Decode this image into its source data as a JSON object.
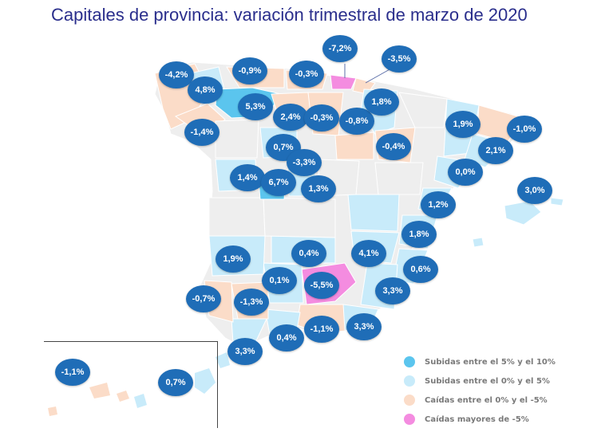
{
  "title": "Capitales de provincia: variación trimestral de marzo de 2020",
  "colors": {
    "badge": "#1f6db7",
    "rise_5_10": "#5bc5ee",
    "rise_0_5": "#c8ebfa",
    "fall_0_5": "#fbdcc8",
    "fall_gt5": "#f48ce0",
    "no_data": "#eeeeee"
  },
  "legend": [
    {
      "label": "Subidas entre el 5% y el 10%",
      "color": "#5bc5ee"
    },
    {
      "label": "Subidas entre el 0% y el 5%",
      "color": "#c8ebfa"
    },
    {
      "label": "Caídas entre el 0% y el -5%",
      "color": "#fbdcc8"
    },
    {
      "label": "Caídas mayores de -5%",
      "color": "#f48ce0"
    }
  ],
  "badges": [
    "-4,2%",
    "4,8%",
    "-0,9%",
    "-0,3%",
    "-7,2%",
    "-3,5%",
    "5,3%",
    "2,4%",
    "-0,3%",
    "-0,8%",
    "1,8%",
    "1,9%",
    "-1,0%",
    "-1,4%",
    "0,7%",
    "-0,4%",
    "2,1%",
    "-3,3%",
    "0,0%",
    "1,4%",
    "6,7%",
    "1,3%",
    "3,0%",
    "1,2%",
    "1,8%",
    "1,9%",
    "0,4%",
    "4,1%",
    "0,6%",
    "0,1%",
    "-5,5%",
    "-0,7%",
    "-1,3%",
    "3,3%",
    "-1,1%",
    "3,3%",
    "0,4%",
    "3,3%",
    "-1,1%",
    "0,7%"
  ]
}
